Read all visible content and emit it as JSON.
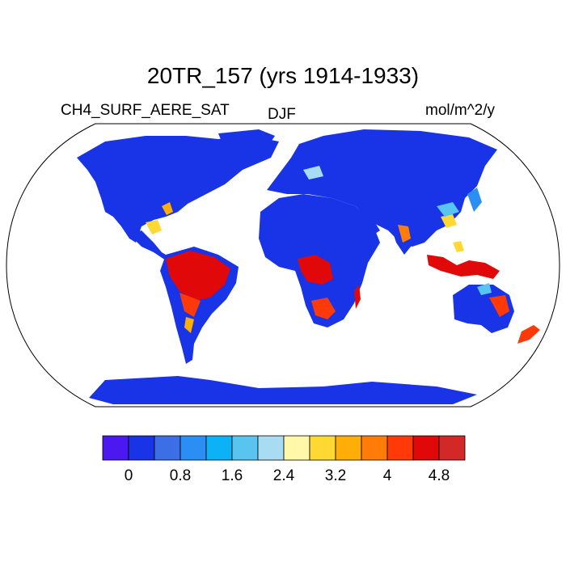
{
  "title": "20TR_157 (yrs 1914-1933)",
  "variable": "CH4_SURF_AERE_SAT",
  "season": "DJF",
  "units": "mol/m^2/y",
  "colorbar": {
    "colors": [
      "#4b18f0",
      "#1834e6",
      "#3c6ee6",
      "#2a8ef5",
      "#0cb2f5",
      "#5ac4f0",
      "#a8dcf2",
      "#fff8a8",
      "#ffd834",
      "#ffae08",
      "#ff7c08",
      "#ff3a08",
      "#e00808",
      "#d22828"
    ],
    "tick_labels": [
      "0",
      "0.8",
      "1.6",
      "2.4",
      "3.2",
      "4",
      "4.8"
    ]
  },
  "map": {
    "projection": "Robinson",
    "ocean_color": "#ffffff",
    "dominant_land_color": "#1834e6"
  }
}
